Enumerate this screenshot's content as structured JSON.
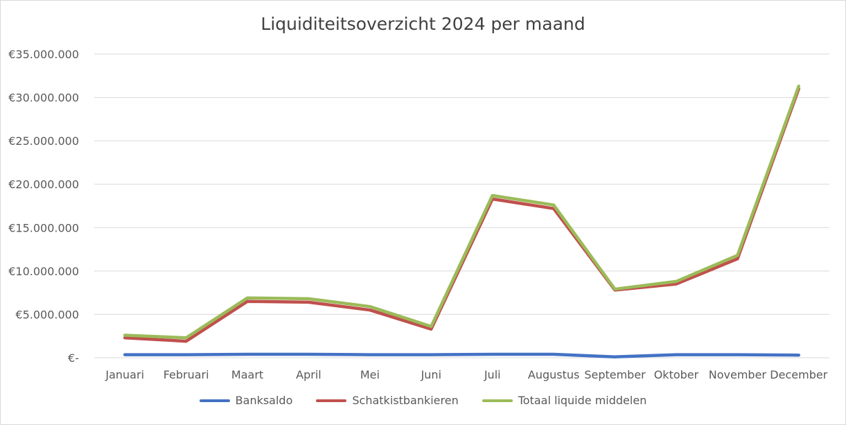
{
  "chart_data": {
    "type": "line",
    "title": "Liquiditeitsoverzicht 2024 per maand",
    "categories": [
      "Januari",
      "Februari",
      "Maart",
      "April",
      "Mei",
      "Juni",
      "Juli",
      "Augustus",
      "September",
      "Oktober",
      "November",
      "December"
    ],
    "ylim": [
      0,
      35000000
    ],
    "yticks": [
      0,
      5000000,
      10000000,
      15000000,
      20000000,
      25000000,
      30000000,
      35000000
    ],
    "ytick_labels": [
      "€-",
      "€5.000.000",
      "€10.000.000",
      "€15.000.000",
      "€20.000.000",
      "€25.000.000",
      "€30.000.000",
      "€35.000.000"
    ],
    "grid": true,
    "legend_position": "bottom",
    "series": [
      {
        "name": "Banksaldo",
        "color": "#4472c4",
        "values": [
          350000,
          350000,
          400000,
          400000,
          350000,
          350000,
          400000,
          400000,
          100000,
          350000,
          350000,
          300000
        ]
      },
      {
        "name": "Schatkistbankieren",
        "color": "#c0504d",
        "values": [
          2300000,
          1900000,
          6500000,
          6400000,
          5500000,
          3300000,
          18300000,
          17200000,
          7800000,
          8500000,
          11400000,
          31000000
        ]
      },
      {
        "name": "Totaal liquide middelen",
        "color": "#9bbb59",
        "values": [
          2600000,
          2300000,
          6900000,
          6800000,
          5900000,
          3600000,
          18700000,
          17600000,
          7900000,
          8800000,
          11800000,
          31300000
        ]
      }
    ]
  }
}
